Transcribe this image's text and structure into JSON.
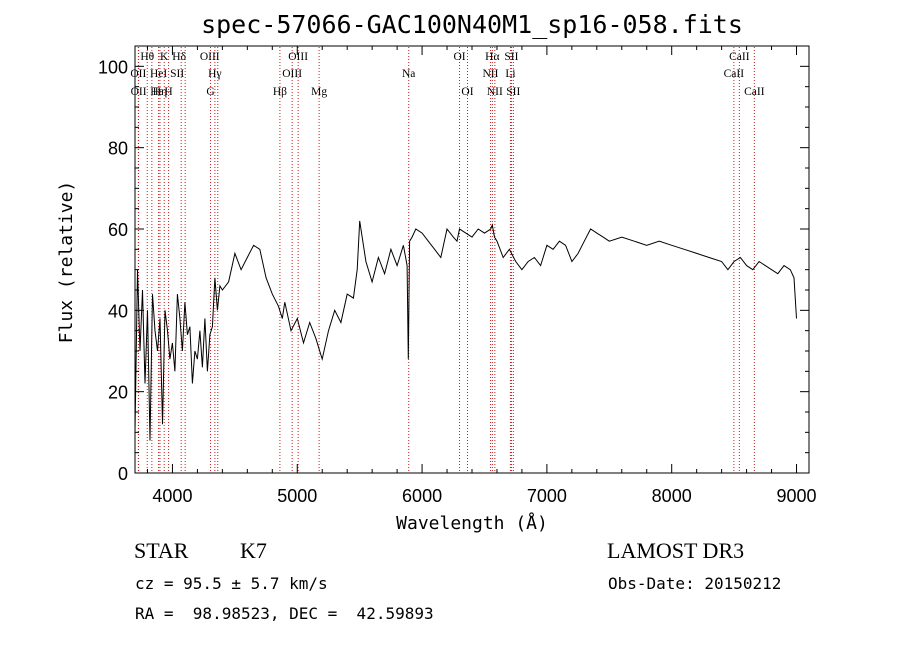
{
  "chart_data": {
    "type": "line",
    "title": "spec-57066-GAC100N40M1_sp16-058.fits",
    "xlabel": "Wavelength (Å)",
    "ylabel": "Flux (relative)",
    "xlim": [
      3700,
      9100
    ],
    "ylim": [
      0,
      105
    ],
    "xticks": [
      4000,
      5000,
      6000,
      7000,
      8000,
      9000
    ],
    "yticks": [
      0,
      20,
      40,
      60,
      80,
      100
    ],
    "spectrum": {
      "x": [
        3700,
        3720,
        3740,
        3760,
        3780,
        3800,
        3820,
        3840,
        3860,
        3880,
        3900,
        3920,
        3940,
        3960,
        3980,
        4000,
        4020,
        4040,
        4060,
        4080,
        4100,
        4120,
        4140,
        4160,
        4180,
        4200,
        4220,
        4240,
        4260,
        4280,
        4300,
        4320,
        4340,
        4360,
        4380,
        4400,
        4450,
        4500,
        4550,
        4600,
        4650,
        4700,
        4750,
        4800,
        4850,
        4880,
        4900,
        4950,
        5000,
        5050,
        5100,
        5150,
        5180,
        5200,
        5250,
        5300,
        5350,
        5400,
        5450,
        5480,
        5500,
        5550,
        5600,
        5650,
        5700,
        5750,
        5800,
        5850,
        5880,
        5890,
        5900,
        5920,
        5950,
        6000,
        6050,
        6100,
        6150,
        6200,
        6250,
        6280,
        6300,
        6350,
        6400,
        6450,
        6500,
        6550,
        6563,
        6580,
        6600,
        6650,
        6700,
        6750,
        6800,
        6850,
        6900,
        6950,
        7000,
        7050,
        7100,
        7150,
        7200,
        7250,
        7300,
        7350,
        7400,
        7450,
        7500,
        7600,
        7700,
        7800,
        7900,
        8000,
        8100,
        8200,
        8300,
        8400,
        8450,
        8500,
        8550,
        8600,
        8650,
        8700,
        8750,
        8800,
        8850,
        8900,
        8950,
        8980,
        9000
      ],
      "y": [
        10,
        50,
        30,
        45,
        22,
        40,
        8,
        44,
        35,
        30,
        38,
        12,
        40,
        35,
        28,
        32,
        25,
        44,
        38,
        30,
        42,
        34,
        36,
        22,
        30,
        28,
        35,
        26,
        38,
        25,
        34,
        36,
        48,
        40,
        46,
        45,
        47,
        54,
        50,
        53,
        56,
        55,
        48,
        44,
        41,
        38,
        42,
        35,
        38,
        32,
        37,
        33,
        30,
        28,
        35,
        40,
        37,
        44,
        43,
        50,
        62,
        52,
        47,
        53,
        49,
        55,
        51,
        56,
        51,
        28,
        57,
        58,
        60,
        59,
        57,
        55,
        53,
        60,
        58,
        57,
        60,
        59,
        58,
        60,
        59,
        60,
        61,
        58,
        57,
        53,
        55,
        52,
        50,
        52,
        53,
        51,
        56,
        55,
        57,
        56,
        52,
        54,
        57,
        60,
        59,
        58,
        57,
        58,
        57,
        56,
        57,
        56,
        55,
        54,
        53,
        52,
        50,
        52,
        53,
        51,
        50,
        52,
        51,
        50,
        49,
        51,
        50,
        48,
        38
      ]
    },
    "lines": [
      {
        "label": "Hθ",
        "wl": 3798,
        "row": 0,
        "dx": 0
      },
      {
        "label": "OII",
        "wl": 3727,
        "row": 1,
        "dx": 0
      },
      {
        "label": "OII",
        "wl": 3729,
        "row": 2,
        "dx": 0
      },
      {
        "label": "Hε",
        "wl": 3835,
        "row": 2,
        "dx": 5
      },
      {
        "label": "HeI",
        "wl": 3889,
        "row": 1,
        "dx": 0
      },
      {
        "label": "Hη",
        "wl": 3900,
        "row": 2,
        "dx": 0
      },
      {
        "label": "K",
        "wl": 3934,
        "row": 0,
        "dx": 0
      },
      {
        "label": "SII",
        "wl": 4070,
        "row": 1,
        "dx": -4
      },
      {
        "label": "H",
        "wl": 3969,
        "row": 2,
        "dx": 0
      },
      {
        "label": "Hδ",
        "wl": 4102,
        "row": 0,
        "dx": -6
      },
      {
        "label": "OIII",
        "wl": 4363,
        "row": 0,
        "dx": -8
      },
      {
        "label": "Hγ",
        "wl": 4340,
        "row": 1,
        "dx": 0
      },
      {
        "label": "G",
        "wl": 4305,
        "row": 2,
        "dx": 0
      },
      {
        "label": "Hβ",
        "wl": 4861,
        "row": 2,
        "dx": 0
      },
      {
        "label": "OIII",
        "wl": 5007,
        "row": 0,
        "dx": 0
      },
      {
        "label": "OIII",
        "wl": 4959,
        "row": 1,
        "dx": 0
      },
      {
        "label": "Mg",
        "wl": 5175,
        "row": 2,
        "dx": 0
      },
      {
        "label": "Na",
        "wl": 5893,
        "row": 1,
        "dx": 0
      },
      {
        "label": "OI",
        "wl": 6300,
        "row": 0,
        "dx": 0
      },
      {
        "label": "OI",
        "wl": 6364,
        "row": 2,
        "dx": 0
      },
      {
        "label": "Hα",
        "wl": 6563,
        "row": 0,
        "dx": 0
      },
      {
        "label": "NII",
        "wl": 6548,
        "row": 1,
        "dx": 0
      },
      {
        "label": "NII",
        "wl": 6583,
        "row": 2,
        "dx": 0
      },
      {
        "label": "SII",
        "wl": 6716,
        "row": 0,
        "dx": 0
      },
      {
        "label": "Li",
        "wl": 6708,
        "row": 1,
        "dx": 0
      },
      {
        "label": "SII",
        "wl": 6731,
        "row": 2,
        "dx": 0
      },
      {
        "label": "CaII",
        "wl": 8542,
        "row": 0,
        "dx": 0
      },
      {
        "label": "CaII",
        "wl": 8498,
        "row": 1,
        "dx": 0
      },
      {
        "label": "CaII",
        "wl": 8662,
        "row": 2,
        "dx": 0
      }
    ]
  },
  "info": {
    "class": "STAR",
    "subclass": "K7",
    "survey": "LAMOST DR3",
    "cz": "cz = 95.5 ± 5.7 km/s",
    "obs_date": "Obs-Date: 20150212",
    "coords": "RA =  98.98523, DEC =  42.59893"
  },
  "colors": {
    "line_marker": "#c81e1e",
    "spectrum": "#000000"
  }
}
